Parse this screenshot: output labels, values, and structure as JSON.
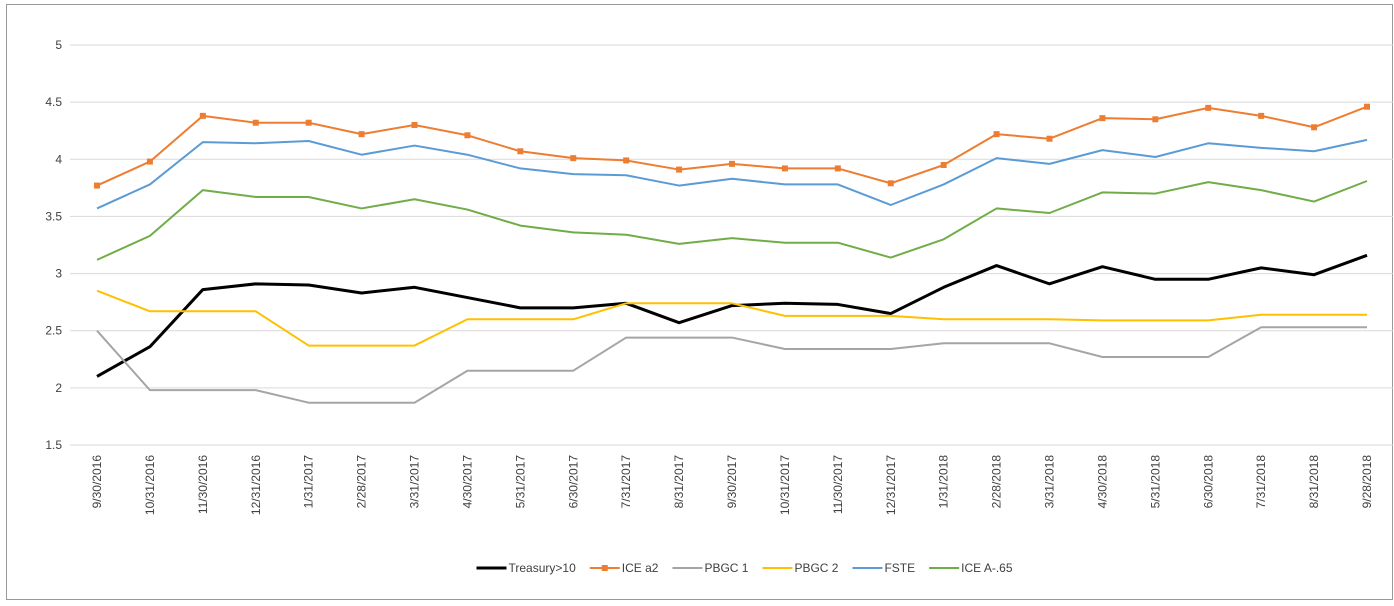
{
  "chart_data": {
    "type": "line",
    "categories": [
      "9/30/2016",
      "10/31/2016",
      "11/30/2016",
      "12/31/2016",
      "1/31/2017",
      "2/28/2017",
      "3/31/2017",
      "4/30/2017",
      "5/31/2017",
      "6/30/2017",
      "7/31/2017",
      "8/31/2017",
      "9/30/2017",
      "10/31/2017",
      "11/30/2017",
      "12/31/2017",
      "1/31/2018",
      "2/28/2018",
      "3/31/2018",
      "4/30/2018",
      "5/31/2018",
      "6/30/2018",
      "7/31/2018",
      "8/31/2018",
      "9/28/2018"
    ],
    "series": [
      {
        "name": "Treasury>10",
        "color": "#000000",
        "values": [
          2.1,
          2.36,
          2.86,
          2.91,
          2.9,
          2.83,
          2.88,
          2.79,
          2.7,
          2.7,
          2.74,
          2.57,
          2.72,
          2.74,
          2.73,
          2.65,
          2.88,
          3.07,
          2.91,
          3.06,
          2.95,
          2.95,
          3.05,
          2.99,
          3.16
        ]
      },
      {
        "name": "ICE a2",
        "color": "#ed7d31",
        "marker": "square",
        "values": [
          3.77,
          3.98,
          4.38,
          4.32,
          4.32,
          4.22,
          4.3,
          4.21,
          4.07,
          4.01,
          3.99,
          3.91,
          3.96,
          3.92,
          3.92,
          3.79,
          3.95,
          4.22,
          4.18,
          4.36,
          4.35,
          4.45,
          4.38,
          4.28,
          4.46
        ]
      },
      {
        "name": "PBGC 1",
        "color": "#a5a5a5",
        "values": [
          2.5,
          1.98,
          1.98,
          1.98,
          1.87,
          1.87,
          1.87,
          2.15,
          2.15,
          2.15,
          2.44,
          2.44,
          2.44,
          2.34,
          2.34,
          2.34,
          2.39,
          2.39,
          2.39,
          2.27,
          2.27,
          2.27,
          2.53,
          2.53,
          2.53
        ]
      },
      {
        "name": "PBGC 2",
        "color": "#ffc000",
        "values": [
          2.85,
          2.67,
          2.67,
          2.67,
          2.37,
          2.37,
          2.37,
          2.6,
          2.6,
          2.6,
          2.74,
          2.74,
          2.74,
          2.63,
          2.63,
          2.63,
          2.6,
          2.6,
          2.6,
          2.59,
          2.59,
          2.59,
          2.64,
          2.64,
          2.64
        ]
      },
      {
        "name": "FSTE",
        "color": "#5b9bd5",
        "values": [
          3.57,
          3.78,
          4.15,
          4.14,
          4.16,
          4.04,
          4.12,
          4.04,
          3.92,
          3.87,
          3.86,
          3.77,
          3.83,
          3.78,
          3.78,
          3.6,
          3.78,
          4.01,
          3.96,
          4.08,
          4.02,
          4.14,
          4.1,
          4.07,
          4.17
        ]
      },
      {
        "name": "ICE A-.65",
        "color": "#70ad47",
        "values": [
          3.12,
          3.33,
          3.73,
          3.67,
          3.67,
          3.57,
          3.65,
          3.56,
          3.42,
          3.36,
          3.34,
          3.26,
          3.31,
          3.27,
          3.27,
          3.14,
          3.3,
          3.57,
          3.53,
          3.71,
          3.7,
          3.8,
          3.73,
          3.63,
          3.81
        ]
      }
    ],
    "ylim": [
      1.5,
      5
    ],
    "yticks": [
      1.5,
      2,
      2.5,
      3,
      3.5,
      4,
      4.5,
      5
    ],
    "grid": true,
    "legend": "bottom"
  }
}
